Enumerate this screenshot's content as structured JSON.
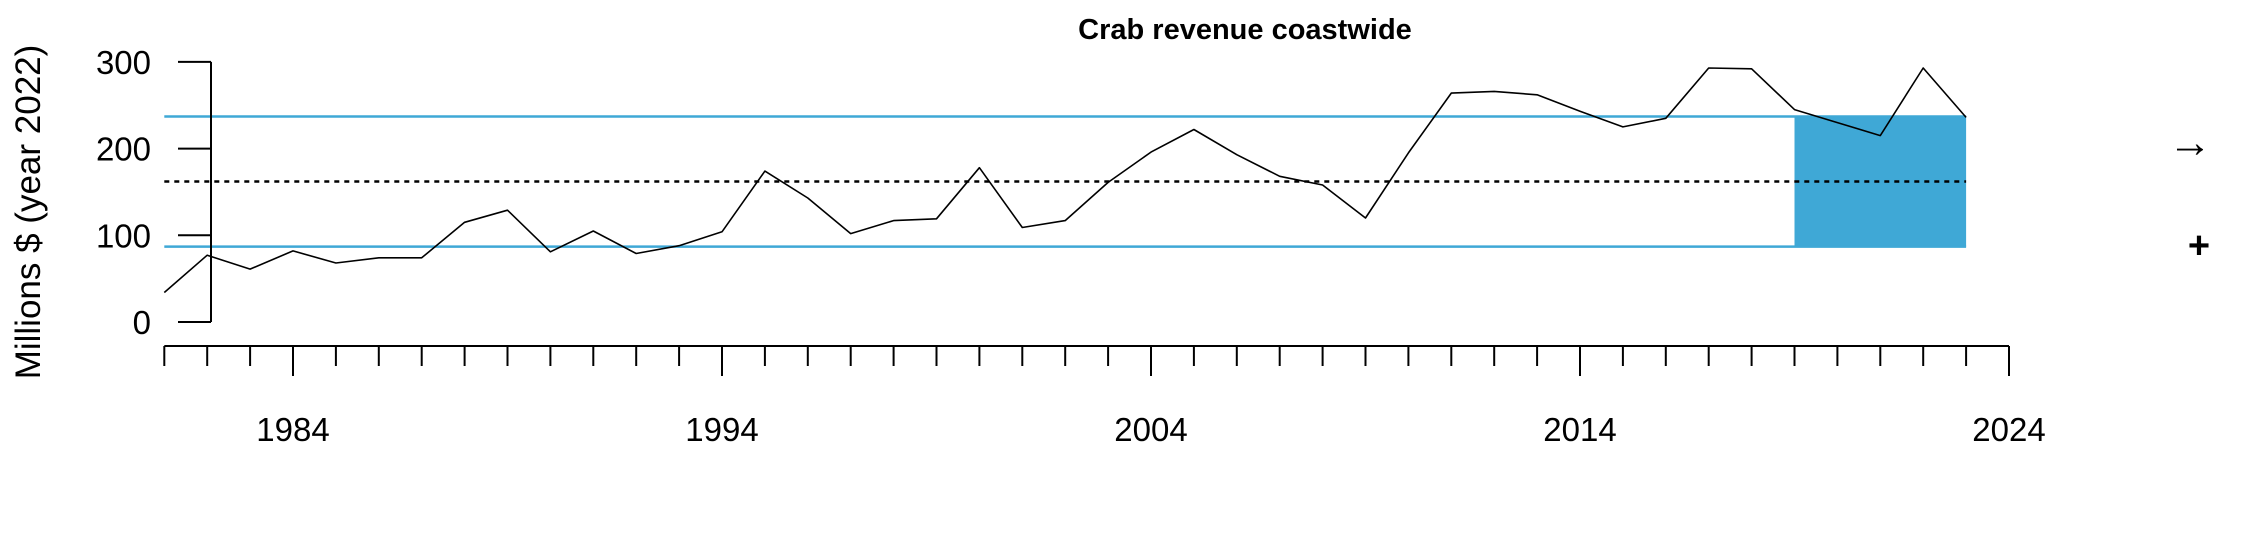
{
  "chart_data": {
    "type": "line",
    "title": "Crab revenue coastwide",
    "ylabel": "Millions $ (year 2022)",
    "xlabel": "",
    "xlim": [
      1981,
      2024
    ],
    "ylim": [
      0,
      300
    ],
    "x_ticks": {
      "minor_step": 1,
      "major": [
        1984,
        1994,
        2004,
        2014,
        2024
      ],
      "labels": [
        "1984",
        "1994",
        "2004",
        "2014",
        "2024"
      ]
    },
    "y_ticks": {
      "values": [
        0,
        100,
        200,
        300
      ],
      "labels": [
        "0",
        "100",
        "200",
        "300"
      ]
    },
    "series": [
      {
        "x": [
          1981,
          1982,
          1983,
          1984,
          1985,
          1986,
          1987,
          1988,
          1989,
          1990,
          1991,
          1992,
          1993,
          1994,
          1995,
          1996,
          1997,
          1998,
          1999,
          2000,
          2001,
          2002,
          2003,
          2004,
          2005,
          2006,
          2007,
          2008,
          2009,
          2010,
          2011,
          2012,
          2013,
          2014,
          2015,
          2016,
          2017,
          2018,
          2019,
          2020,
          2021,
          2022,
          2023
        ],
        "values": [
          34,
          77,
          61,
          82,
          68,
          74,
          74,
          115,
          129,
          81,
          105,
          79,
          88,
          104,
          174,
          143,
          102,
          117,
          119,
          178,
          109,
          117,
          161,
          196,
          222,
          193,
          168,
          158,
          120,
          195,
          264,
          266,
          262,
          243,
          225,
          235,
          293,
          292,
          245,
          230,
          215,
          293,
          236
        ]
      }
    ],
    "reference_lines": {
      "mean": 162,
      "upper_sd": 237,
      "lower_sd": 87
    },
    "recent_period": {
      "from": 2019,
      "to": 2023
    },
    "indicators": {
      "trend": "→",
      "mean_status": "+"
    },
    "colors": {
      "series_line": "#000000",
      "sd_lines": "#3fa8d6",
      "recent_fill": "#3fa8d6",
      "mean_line": "#000000"
    },
    "grid": false,
    "legend": "none"
  }
}
